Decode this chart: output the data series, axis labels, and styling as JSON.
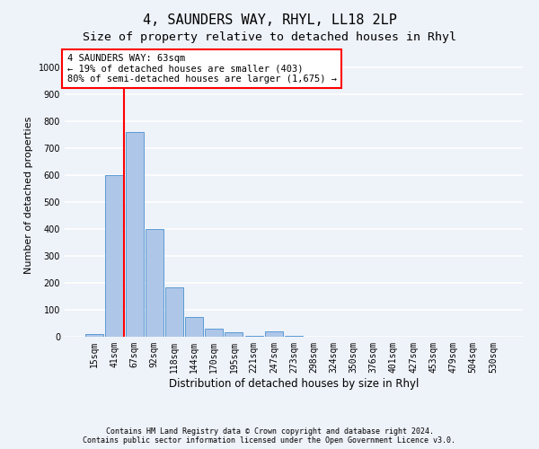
{
  "title": "4, SAUNDERS WAY, RHYL, LL18 2LP",
  "subtitle": "Size of property relative to detached houses in Rhyl",
  "xlabel": "Distribution of detached houses by size in Rhyl",
  "ylabel": "Number of detached properties",
  "footnote": "Contains HM Land Registry data © Crown copyright and database right 2024.\nContains public sector information licensed under the Open Government Licence v3.0.",
  "bar_labels": [
    "15sqm",
    "41sqm",
    "67sqm",
    "92sqm",
    "118sqm",
    "144sqm",
    "170sqm",
    "195sqm",
    "221sqm",
    "247sqm",
    "273sqm",
    "298sqm",
    "324sqm",
    "350sqm",
    "376sqm",
    "401sqm",
    "427sqm",
    "453sqm",
    "479sqm",
    "504sqm",
    "530sqm"
  ],
  "bar_values": [
    10,
    600,
    760,
    400,
    185,
    75,
    30,
    18,
    5,
    20,
    5,
    0,
    0,
    0,
    0,
    0,
    0,
    0,
    0,
    0,
    0
  ],
  "bar_color": "#aec6e8",
  "bar_edge_color": "#5b9bd5",
  "ylim": [
    0,
    1050
  ],
  "yticks": [
    0,
    100,
    200,
    300,
    400,
    500,
    600,
    700,
    800,
    900,
    1000
  ],
  "annotation_text": "4 SAUNDERS WAY: 63sqm\n← 19% of detached houses are smaller (403)\n80% of semi-detached houses are larger (1,675) →",
  "annotation_box_color": "white",
  "annotation_box_edge_color": "red",
  "vline_color": "red",
  "vline_x": 1.5,
  "background_color": "#eef2f9",
  "grid_color": "white",
  "title_fontsize": 11,
  "subtitle_fontsize": 9.5,
  "tick_fontsize": 7,
  "ylabel_fontsize": 8,
  "xlabel_fontsize": 8.5,
  "annotation_fontsize": 7.5,
  "footnote_fontsize": 6
}
